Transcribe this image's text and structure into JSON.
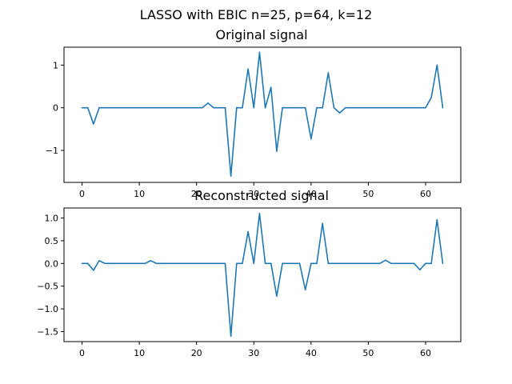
{
  "figure_title": "LASSO with EBIC n=25, p=64, k=12",
  "colors": {
    "line": "#1f77b4",
    "axes": "#000000",
    "background": "#ffffff"
  },
  "chart_data": [
    {
      "type": "line",
      "title": "Original signal",
      "xlabel": "",
      "ylabel": "",
      "xlim": [
        -3.15,
        66.15
      ],
      "ylim": [
        -1.75,
        1.42
      ],
      "xticks": [
        0,
        10,
        20,
        30,
        40,
        50,
        60
      ],
      "yticks": [
        -1,
        0,
        1
      ],
      "grid": false,
      "series": [
        {
          "x": [
            0,
            1,
            2,
            3,
            4,
            5,
            6,
            7,
            8,
            9,
            10,
            11,
            12,
            13,
            14,
            15,
            16,
            17,
            18,
            19,
            20,
            21,
            22,
            23,
            24,
            25,
            26,
            27,
            28,
            29,
            30,
            31,
            32,
            33,
            34,
            35,
            36,
            37,
            38,
            39,
            40,
            41,
            42,
            43,
            44,
            45,
            46,
            47,
            48,
            49,
            50,
            51,
            52,
            53,
            54,
            55,
            56,
            57,
            58,
            59,
            60,
            61,
            62,
            63
          ],
          "values": [
            0,
            0,
            -0.38,
            0,
            0,
            0,
            0,
            0,
            0,
            0,
            0,
            0,
            0,
            0,
            0,
            0,
            0,
            0,
            0,
            0,
            0,
            0,
            0.11,
            0,
            0,
            0,
            -1.6,
            0,
            0,
            0.91,
            0,
            1.3,
            0,
            0.48,
            -1.02,
            0,
            0,
            0,
            0,
            0,
            -0.73,
            0,
            0,
            0.82,
            0,
            -0.12,
            0,
            0,
            0,
            0,
            0,
            0,
            0,
            0,
            0,
            0,
            0,
            0,
            0,
            0,
            0,
            0.24,
            1.0,
            0
          ]
        }
      ]
    },
    {
      "type": "line",
      "title": "Reconstructed signal",
      "xlabel": "",
      "ylabel": "",
      "xlim": [
        -3.15,
        66.15
      ],
      "ylim": [
        -1.72,
        1.22
      ],
      "xticks": [
        0,
        10,
        20,
        30,
        40,
        50,
        60
      ],
      "yticks": [
        -1.5,
        -1.0,
        -0.5,
        0.0,
        0.5,
        1.0
      ],
      "ytick_labels": [
        "−1.5",
        "−1.0",
        "−0.5",
        "0.0",
        "0.5",
        "1.0"
      ],
      "grid": false,
      "series": [
        {
          "x": [
            0,
            1,
            2,
            3,
            4,
            5,
            6,
            7,
            8,
            9,
            10,
            11,
            12,
            13,
            14,
            15,
            16,
            17,
            18,
            19,
            20,
            21,
            22,
            23,
            24,
            25,
            26,
            27,
            28,
            29,
            30,
            31,
            32,
            33,
            34,
            35,
            36,
            37,
            38,
            39,
            40,
            41,
            42,
            43,
            44,
            45,
            46,
            47,
            48,
            49,
            50,
            51,
            52,
            53,
            54,
            55,
            56,
            57,
            58,
            59,
            60,
            61,
            62,
            63
          ],
          "values": [
            0,
            0,
            -0.15,
            0.06,
            0,
            0,
            0,
            0,
            0,
            0,
            0,
            0,
            0.06,
            0,
            0,
            0,
            0,
            0,
            0,
            0,
            0,
            0,
            0,
            0,
            0,
            0,
            -1.6,
            0,
            0,
            0.7,
            0,
            1.1,
            0,
            0,
            -0.72,
            0,
            0,
            0,
            0,
            -0.58,
            0,
            0,
            0.88,
            0,
            0,
            0,
            0,
            0,
            0,
            0,
            0,
            0,
            0,
            0.07,
            0,
            0,
            0,
            0,
            0,
            -0.14,
            0,
            0,
            0.96,
            0
          ]
        }
      ]
    }
  ]
}
